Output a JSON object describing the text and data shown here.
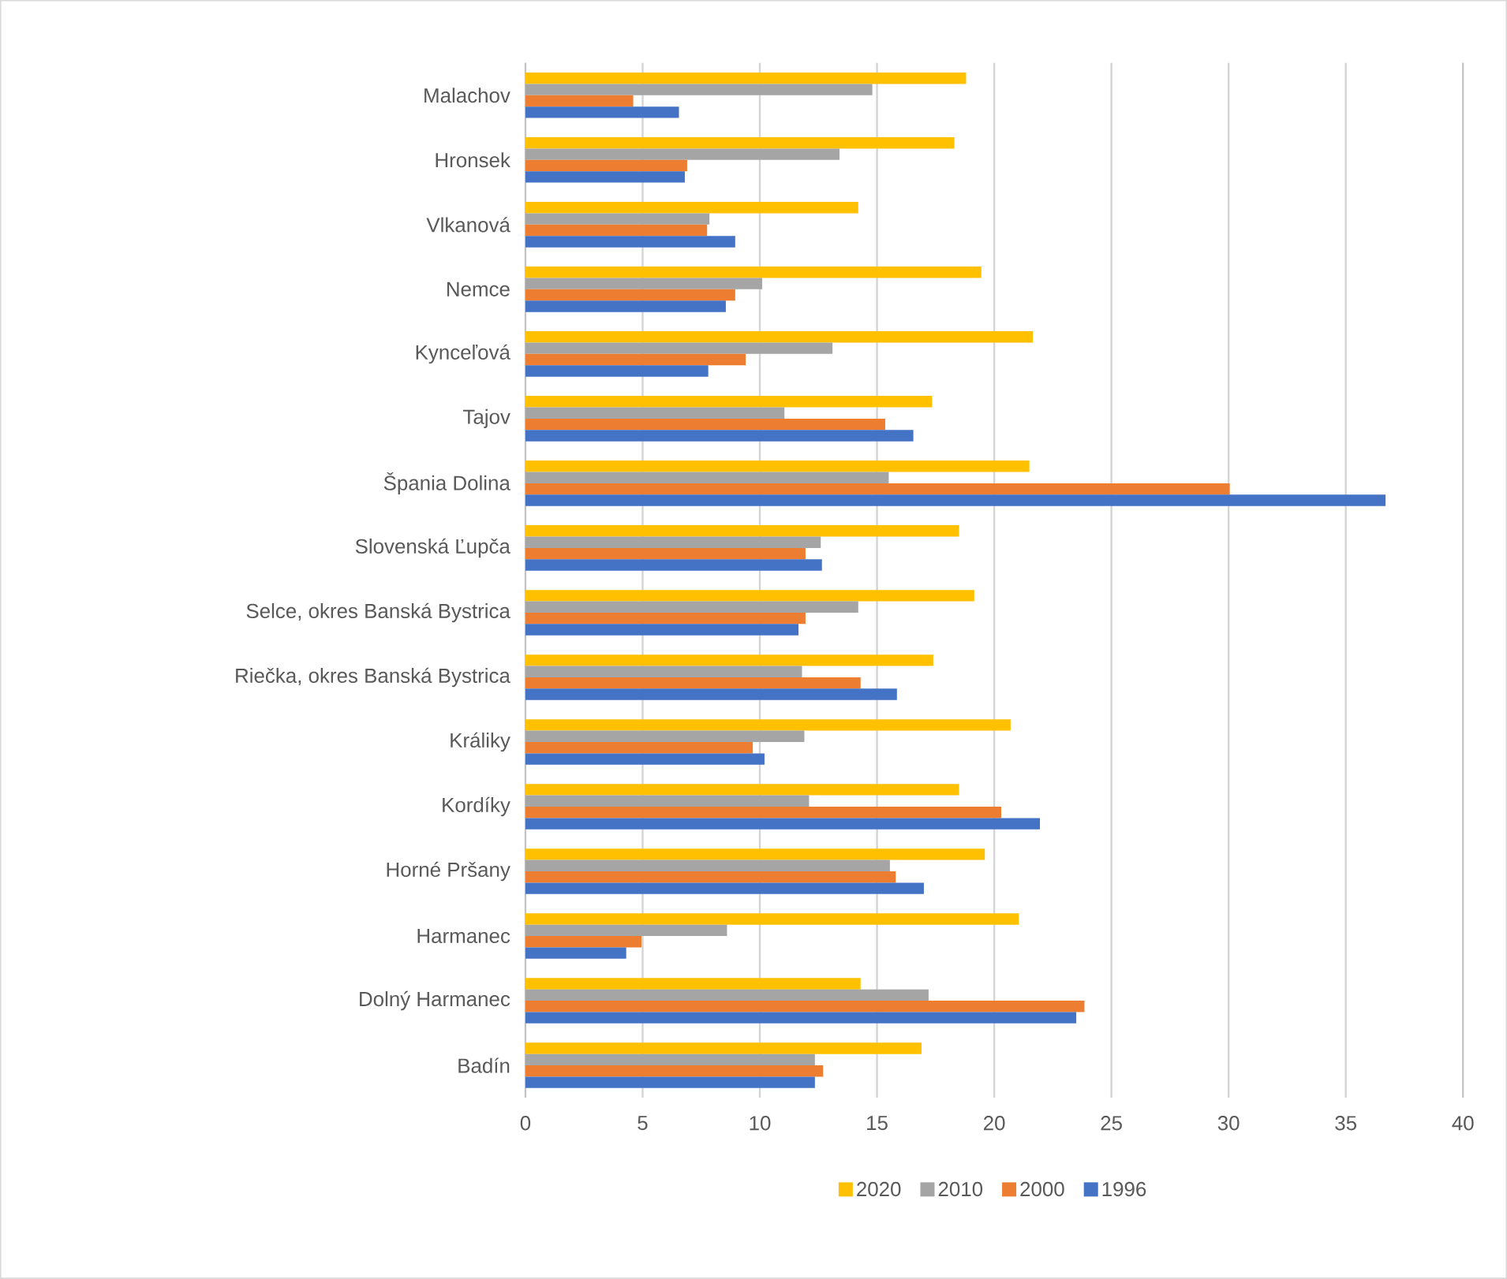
{
  "chart_data": {
    "type": "bar",
    "orientation": "horizontal",
    "categories": [
      "Malachov",
      "Hronsek",
      "Vlkanová",
      "Nemce",
      "Kynceľová",
      "Tajov",
      "Špania Dolina",
      "Slovenská Ľupča",
      "Selce, okres Banská Bystrica",
      "Riečka, okres Banská Bystrica",
      "Králiky",
      "Kordíky",
      "Horné Pršany",
      "Harmanec",
      "Dolný Harmanec",
      "Badín"
    ],
    "series": [
      {
        "name": "2020",
        "color": "#ffc000",
        "values": [
          18.8,
          18.3,
          14.2,
          19.45,
          21.65,
          17.35,
          21.5,
          18.5,
          19.15,
          17.4,
          20.7,
          18.5,
          19.6,
          21.05,
          14.3,
          16.9
        ]
      },
      {
        "name": "2010",
        "color": "#a5a5a5",
        "values": [
          14.8,
          13.4,
          7.85,
          10.1,
          13.1,
          11.05,
          15.5,
          12.6,
          14.2,
          11.8,
          11.9,
          12.1,
          15.55,
          8.6,
          17.2,
          12.35
        ]
      },
      {
        "name": "2000",
        "color": "#ed7d31",
        "values": [
          4.6,
          6.9,
          7.75,
          8.95,
          9.4,
          15.35,
          30.05,
          11.95,
          11.95,
          14.3,
          9.7,
          20.3,
          15.8,
          4.95,
          23.85,
          12.7
        ]
      },
      {
        "name": "1996",
        "color": "#4472c4",
        "values": [
          6.55,
          6.8,
          8.95,
          8.55,
          7.8,
          16.55,
          36.7,
          12.65,
          11.65,
          15.85,
          10.2,
          21.95,
          17.0,
          4.3,
          23.5,
          12.35
        ]
      }
    ],
    "xlim": [
      0,
      40
    ],
    "xticks": [
      0,
      5,
      10,
      15,
      20,
      25,
      30,
      35,
      40
    ],
    "grid": "x",
    "legend": "bottom"
  }
}
